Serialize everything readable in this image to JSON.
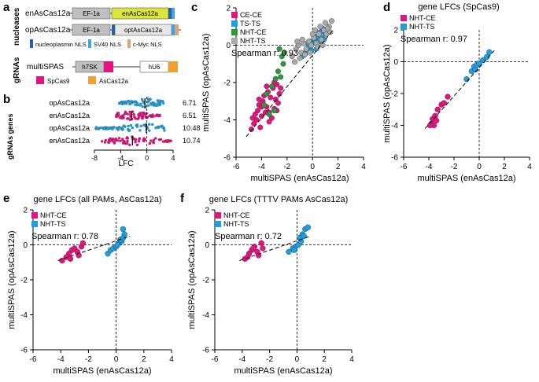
{
  "colors": {
    "magenta": "#e6127f",
    "blue": "#1ba0e2",
    "green": "#2b9a3b",
    "gray": "#a9a9a9",
    "ef1a_box": "#bfbfbf",
    "enascas": "#d9e53c",
    "optascas": "#e6e6e6",
    "nucleoplasmin": "#2a5fa8",
    "sv40": "#3ca7df",
    "cmyc": "#d9a57a",
    "spcas9": "#e6127f",
    "ascas12a": "#f0a030",
    "h7sk": "#bfbfbf"
  },
  "panel_a": {
    "label": "a",
    "section_nucleases": "nucleases",
    "section_grnas": "gRNAs",
    "constructs": [
      {
        "name": "enAsCas12a",
        "promoter": "EF-1a",
        "gene": "enAsCas12a"
      },
      {
        "name": "opAsCas12a",
        "promoter": "EF-1a",
        "gene": "optAsCas12a"
      }
    ],
    "legend_nls": [
      "nucleoplasmin NLS",
      "SV40 NLS",
      "c-Myc NLS"
    ],
    "multispas": {
      "name": "multiSPAS",
      "promoter1": "h7SK",
      "promoter2": "hU6"
    },
    "legend_grna": [
      "SpCas9",
      "AsCas12a"
    ]
  },
  "panel_b": {
    "label": "b",
    "chart_data": {
      "type": "beeswarm",
      "ylabel": "gRNAs genes",
      "xlabel": "LFC",
      "xlim": [
        -8,
        4
      ],
      "xticks": [
        -8,
        -4,
        0,
        4
      ],
      "rows": [
        {
          "label": "opAsCas12a",
          "value": "6.71",
          "color": "#1ba0e2",
          "min": -4.6,
          "max": 2.6,
          "median": -0.3
        },
        {
          "label": "enAsCas12a",
          "value": "6.51",
          "color": "#e6127f",
          "min": -4.7,
          "max": 2.2,
          "median": -2.3
        },
        {
          "label": "opAsCas12a",
          "value": "10.48",
          "color": "#1ba0e2",
          "min": -7.8,
          "max": 2.8,
          "median": -0.1
        },
        {
          "label": "enAsCas12a",
          "value": "10.74",
          "color": "#e6127f",
          "min": -7.3,
          "max": 3.8,
          "median": -2.2
        }
      ]
    }
  },
  "chart_data": [
    {
      "id": "c",
      "type": "scatter",
      "title": "",
      "xlabel": "multiSPAS (enAsCas12a)",
      "ylabel": "multiSPAS (opAsCas12a)",
      "xlim": [
        -6,
        4
      ],
      "ylim": [
        -6,
        2
      ],
      "xticks": [
        -6,
        -4,
        -2,
        0,
        2,
        4
      ],
      "yticks": [
        -6,
        -4,
        -2,
        0,
        2
      ],
      "stat": "Spearman r: 0.93",
      "legend": [
        {
          "name": "CE-CE",
          "color": "#e6127f"
        },
        {
          "name": "TS-TS",
          "color": "#1ba0e2"
        },
        {
          "name": "NHT-CE",
          "color": "#2b9a3b"
        },
        {
          "name": "NHT-TS",
          "color": "#a9a9a9"
        }
      ],
      "fit": [
        [
          -5.2,
          -4.9
        ],
        [
          1.6,
          0.8
        ]
      ],
      "series": [
        {
          "name": "CE-CE",
          "color": "#e6127f",
          "points": [
            [
              -4.8,
              -4.5
            ],
            [
              -4.6,
              -4.2
            ],
            [
              -4.5,
              -3.7
            ],
            [
              -4.4,
              -4.0
            ],
            [
              -4.3,
              -3.5
            ],
            [
              -4.2,
              -3.2
            ],
            [
              -4.1,
              -4.4
            ],
            [
              -4.0,
              -3.8
            ],
            [
              -3.9,
              -3.0
            ],
            [
              -3.8,
              -2.7
            ],
            [
              -3.7,
              -3.6
            ],
            [
              -3.6,
              -3.3
            ],
            [
              -3.5,
              -2.5
            ],
            [
              -3.4,
              -4.1
            ],
            [
              -3.3,
              -2.8
            ],
            [
              -3.2,
              -3.9
            ],
            [
              -3.1,
              -2.3
            ],
            [
              -3.0,
              -3.4
            ],
            [
              -2.9,
              -2.9
            ],
            [
              -2.8,
              -2.1
            ],
            [
              -2.7,
              -3.1
            ],
            [
              -2.6,
              -2.6
            ],
            [
              -4.7,
              -3.9
            ],
            [
              -4.2,
              -2.9
            ],
            [
              -3.6,
              -2.2
            ],
            [
              -3.0,
              -2.0
            ],
            [
              -2.5,
              -2.3
            ],
            [
              -4.0,
              -3.3
            ],
            [
              -3.4,
              -3.6
            ],
            [
              -2.8,
              -3.5
            ]
          ]
        },
        {
          "name": "TS-TS",
          "color": "#1ba0e2",
          "points": [
            [
              -0.8,
              -0.6
            ],
            [
              -0.5,
              -0.3
            ],
            [
              -0.3,
              -0.1
            ],
            [
              0.0,
              0.1
            ],
            [
              0.2,
              0.3
            ],
            [
              0.4,
              0.5
            ],
            [
              0.6,
              0.7
            ],
            [
              0.8,
              0.9
            ],
            [
              1.0,
              0.6
            ],
            [
              -0.2,
              0.2
            ],
            [
              0.3,
              -0.2
            ],
            [
              -0.6,
              -0.5
            ],
            [
              0.1,
              0.5
            ],
            [
              0.5,
              0.2
            ],
            [
              0.7,
              0.4
            ],
            [
              -0.1,
              -0.3
            ],
            [
              0.9,
              0.3
            ],
            [
              -0.4,
              0.1
            ]
          ]
        },
        {
          "name": "NHT-CE",
          "color": "#2b9a3b",
          "points": [
            [
              -2.6,
              -0.2
            ],
            [
              -2.4,
              -0.6
            ],
            [
              -2.2,
              -0.4
            ],
            [
              -2.9,
              -1.8
            ],
            [
              -3.2,
              -2.2
            ],
            [
              -3.6,
              -2.6
            ],
            [
              -2.7,
              -1.4
            ],
            [
              -3.0,
              -3.5
            ],
            [
              -3.4,
              -3.7
            ],
            [
              -2.3,
              -1.0
            ],
            [
              -3.8,
              -3.2
            ],
            [
              -2.5,
              -1.7
            ]
          ]
        },
        {
          "name": "NHT-TS",
          "color": "#a9a9a9",
          "points": [
            [
              -1.6,
              -0.6
            ],
            [
              -1.3,
              -0.2
            ],
            [
              -1.1,
              0.0
            ],
            [
              -0.9,
              -0.4
            ],
            [
              -0.7,
              0.1
            ],
            [
              -0.5,
              -0.2
            ],
            [
              -0.3,
              0.2
            ],
            [
              -0.1,
              0.0
            ],
            [
              0.1,
              0.4
            ],
            [
              0.3,
              0.1
            ],
            [
              0.5,
              0.6
            ],
            [
              0.7,
              0.3
            ],
            [
              0.9,
              0.8
            ],
            [
              1.1,
              0.6
            ],
            [
              1.3,
              1.0
            ],
            [
              1.5,
              1.3
            ],
            [
              -1.4,
              -0.9
            ],
            [
              -1.0,
              -0.7
            ],
            [
              -0.6,
              -0.5
            ],
            [
              -0.2,
              -0.4
            ],
            [
              0.4,
              -0.1
            ],
            [
              0.8,
              0.0
            ],
            [
              1.2,
              0.9
            ],
            [
              -0.8,
              0.3
            ],
            [
              0.0,
              0.6
            ],
            [
              0.6,
              1.0
            ],
            [
              1.0,
              1.2
            ],
            [
              -1.2,
              0.2
            ],
            [
              0.2,
              0.8
            ],
            [
              1.4,
              0.7
            ]
          ]
        }
      ]
    },
    {
      "id": "d",
      "type": "scatter",
      "title": "gene LFCs (SpCas9)",
      "xlabel": "multiSPAS (enAsCas12a)",
      "ylabel": "multiSPAS (opAsCas12a)",
      "xlim": [
        -6,
        4
      ],
      "ylim": [
        -6,
        2
      ],
      "xticks": [
        -6,
        -4,
        -2,
        0,
        2,
        4
      ],
      "yticks": [
        -6,
        -4,
        -2,
        0,
        2
      ],
      "stat": "Spearman r: 0.97",
      "legend": [
        {
          "name": "NHT-CE",
          "color": "#e6127f"
        },
        {
          "name": "NHT-TS",
          "color": "#1ba0e2"
        }
      ],
      "fit": [
        [
          -4.3,
          -4.2
        ],
        [
          1.2,
          0.7
        ]
      ],
      "series": [
        {
          "name": "NHT-CE",
          "color": "#e6127f",
          "points": [
            [
              -3.8,
              -3.9
            ],
            [
              -3.7,
              -3.6
            ],
            [
              -3.5,
              -3.4
            ],
            [
              -3.3,
              -3.0
            ],
            [
              -3.6,
              -4.0
            ],
            [
              -3.0,
              -2.7
            ],
            [
              -2.8,
              -2.6
            ],
            [
              -2.5,
              -2.2
            ],
            [
              -3.4,
              -3.7
            ],
            [
              -3.9,
              -4.0
            ]
          ]
        },
        {
          "name": "NHT-TS",
          "color": "#1ba0e2",
          "points": [
            [
              -1.0,
              -1.1
            ],
            [
              -0.6,
              -0.6
            ],
            [
              -0.4,
              -0.3
            ],
            [
              -0.2,
              -0.2
            ],
            [
              0.0,
              -0.1
            ],
            [
              0.3,
              0.1
            ],
            [
              0.6,
              0.3
            ],
            [
              0.8,
              0.6
            ],
            [
              -0.3,
              -0.5
            ]
          ]
        }
      ]
    },
    {
      "id": "e",
      "type": "scatter",
      "title": "gene LFCs (all PAMs, AsCas12a)",
      "xlabel": "multiSPAS (enAsCas12a)",
      "ylabel": "multiSPAS (opAsCas12a)",
      "xlim": [
        -6,
        4
      ],
      "ylim": [
        -6,
        2
      ],
      "xticks": [
        -6,
        -4,
        -2,
        0,
        2,
        4
      ],
      "yticks": [
        -6,
        -4,
        -2,
        0,
        2
      ],
      "stat": "Spearman r: 0.78",
      "legend": [
        {
          "name": "NHT-CE",
          "color": "#e6127f"
        },
        {
          "name": "NHT-TS",
          "color": "#1ba0e2"
        }
      ],
      "fit": [
        [
          -4.2,
          -0.9
        ],
        [
          1.0,
          0.5
        ]
      ],
      "series": [
        {
          "name": "NHT-CE",
          "color": "#e6127f",
          "points": [
            [
              -3.9,
              -0.9
            ],
            [
              -3.4,
              -0.5
            ],
            [
              -3.2,
              -0.3
            ],
            [
              -3.0,
              -0.2
            ],
            [
              -2.8,
              -0.4
            ],
            [
              -2.5,
              -0.1
            ],
            [
              -3.6,
              -0.7
            ],
            [
              -2.7,
              -0.6
            ],
            [
              -3.3,
              -0.8
            ],
            [
              -2.4,
              0.1
            ]
          ]
        },
        {
          "name": "NHT-TS",
          "color": "#1ba0e2",
          "points": [
            [
              -0.6,
              -0.5
            ],
            [
              -0.4,
              -0.3
            ],
            [
              -0.2,
              -0.2
            ],
            [
              0.0,
              -0.1
            ],
            [
              0.2,
              0.1
            ],
            [
              0.4,
              0.2
            ],
            [
              0.5,
              0.9
            ],
            [
              0.6,
              0.6
            ],
            [
              0.3,
              0.3
            ],
            [
              0.1,
              0.0
            ],
            [
              0.5,
              0.4
            ]
          ]
        }
      ]
    },
    {
      "id": "f",
      "type": "scatter",
      "title": "gene LFCs (TTTV PAMs AsCas12a)",
      "xlabel": "multiSPAS (enAsCas12a)",
      "ylabel": "multiSPAS (opAsCas12a)",
      "xlim": [
        -6,
        4
      ],
      "ylim": [
        -6,
        2
      ],
      "xticks": [
        -6,
        -4,
        -2,
        0,
        2,
        4
      ],
      "yticks": [
        -6,
        -4,
        -2,
        0,
        2
      ],
      "stat": "Spearman r: 0.72",
      "legend": [
        {
          "name": "NHT-CE",
          "color": "#e6127f"
        },
        {
          "name": "NHT-TS",
          "color": "#1ba0e2"
        }
      ],
      "fit": [
        [
          -4.2,
          -0.9
        ],
        [
          1.0,
          0.5
        ]
      ],
      "series": [
        {
          "name": "NHT-CE",
          "color": "#e6127f",
          "points": [
            [
              -3.8,
              -0.8
            ],
            [
              -3.5,
              -0.5
            ],
            [
              -3.3,
              -0.3
            ],
            [
              -3.1,
              -0.1
            ],
            [
              -2.9,
              -0.4
            ],
            [
              -2.6,
              0.1
            ],
            [
              -3.6,
              -0.7
            ],
            [
              -2.8,
              -0.6
            ],
            [
              -3.2,
              -0.2
            ],
            [
              -2.5,
              -0.2
            ]
          ]
        },
        {
          "name": "NHT-TS",
          "color": "#1ba0e2",
          "points": [
            [
              -0.6,
              -0.4
            ],
            [
              -0.3,
              -0.2
            ],
            [
              -0.1,
              -0.1
            ],
            [
              0.1,
              0.0
            ],
            [
              0.3,
              0.2
            ],
            [
              0.4,
              0.6
            ],
            [
              0.6,
              0.9
            ],
            [
              0.8,
              1.0
            ],
            [
              0.2,
              0.4
            ],
            [
              0.5,
              0.5
            ],
            [
              -0.2,
              -0.3
            ]
          ]
        }
      ]
    }
  ]
}
